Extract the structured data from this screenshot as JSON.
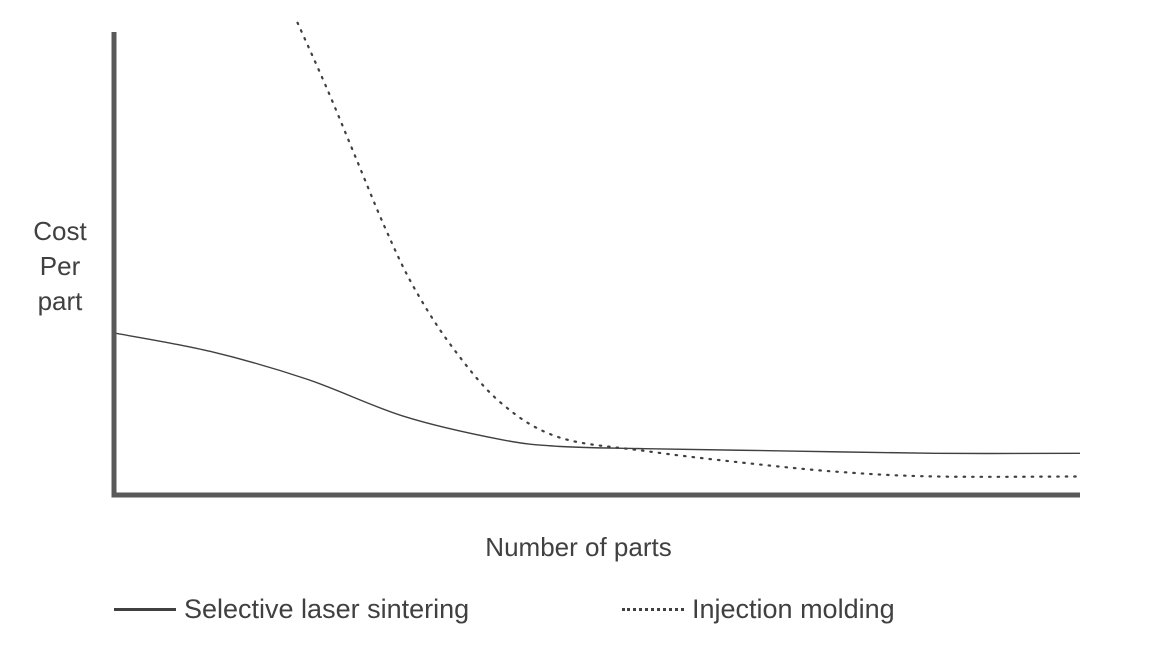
{
  "chart_data": {
    "type": "line",
    "title": "",
    "xlabel": "Number of parts",
    "ylabel_lines": [
      "Cost",
      "Per",
      "part"
    ],
    "x_ticks": [],
    "y_ticks": [],
    "grid": false,
    "legend_position": "bottom",
    "xlim": [
      0,
      100
    ],
    "ylim": [
      0,
      100
    ],
    "series": [
      {
        "name": "Selective laser sintering",
        "style": "solid",
        "color": "#404040",
        "x": [
          0,
          10,
          20,
          30,
          40,
          46,
          55,
          70,
          85,
          100
        ],
        "y": [
          35,
          31,
          25,
          17,
          12,
          10.5,
          10,
          9.5,
          9,
          9
        ]
      },
      {
        "name": "Injection molding",
        "style": "dotted",
        "color": "#404040",
        "x": [
          19,
          22,
          25,
          28,
          31,
          35,
          40,
          46,
          55,
          65,
          75,
          85,
          100
        ],
        "y": [
          102,
          88,
          73,
          58,
          45,
          32,
          20,
          12.5,
          9.5,
          7,
          5,
          4,
          4
        ]
      }
    ]
  },
  "colors": {
    "axis": "#595959",
    "text": "#404040"
  }
}
